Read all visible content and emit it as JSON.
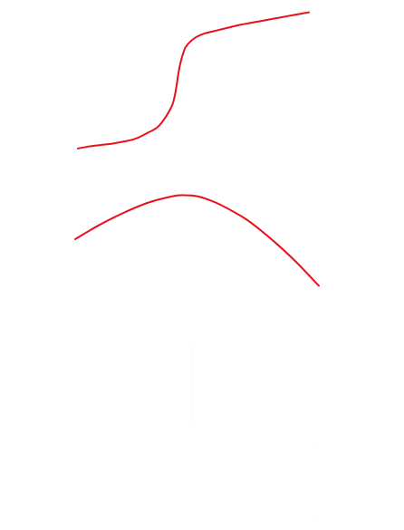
{
  "chart_data": [
    {
      "type": "line",
      "title": "",
      "xlabel": "",
      "ylabel": "",
      "color": "#e8101a",
      "grid": false,
      "legend": "none",
      "xlim": [
        0,
        100
      ],
      "ylim": [
        0,
        100
      ],
      "series": [
        {
          "x": [
            0,
            5,
            10,
            15,
            20,
            25,
            30,
            35,
            40,
            42,
            44,
            46,
            47,
            48,
            50,
            52,
            55,
            60,
            65,
            70,
            75,
            80,
            85,
            90,
            95,
            100
          ],
          "y": [
            2,
            3.5,
            4.5,
            5.5,
            7,
            9,
            13,
            18,
            30,
            40,
            60,
            72,
            75,
            77,
            80,
            82,
            84,
            86,
            88,
            90,
            91.5,
            93,
            94.5,
            96,
            97.5,
            99
          ]
        }
      ]
    },
    {
      "type": "line",
      "title": "",
      "xlabel": "",
      "ylabel": "",
      "color": "#e8101a",
      "grid": false,
      "legend": "none",
      "xlim": [
        0,
        100
      ],
      "ylim": [
        0,
        100
      ],
      "series": [
        {
          "x": [
            0,
            10,
            20,
            30,
            40,
            45,
            50,
            55,
            60,
            70,
            80,
            90,
            100
          ],
          "y": [
            53,
            66.5,
            78,
            87.5,
            93.5,
            94.5,
            93.5,
            90,
            85,
            72,
            54,
            33,
            9
          ]
        }
      ]
    }
  ]
}
